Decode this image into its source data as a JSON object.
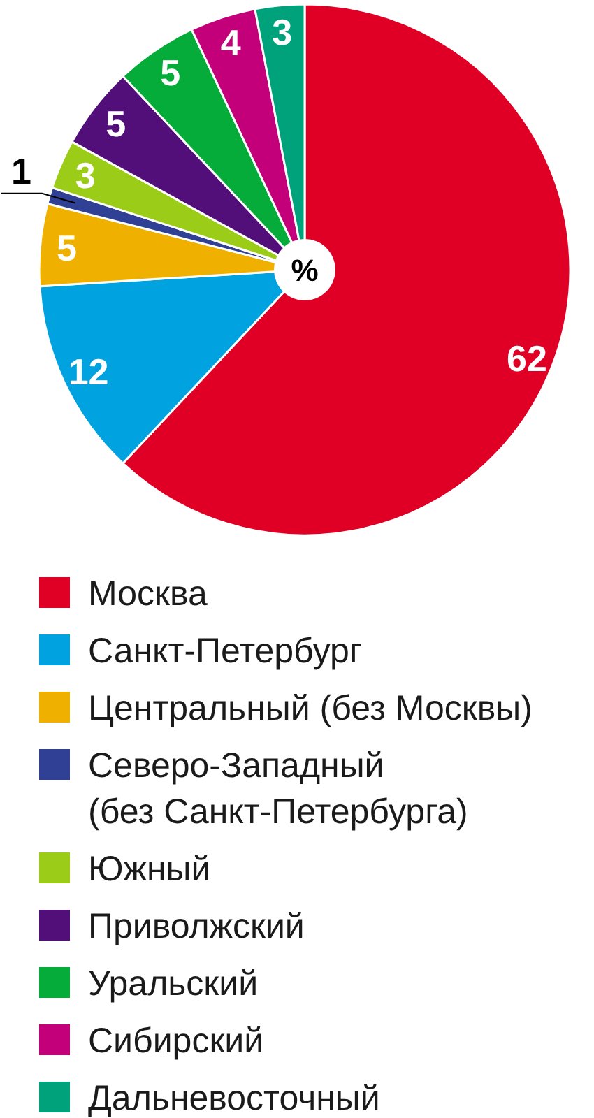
{
  "chart_data": {
    "type": "pie",
    "categories": [
      "Москва",
      "Санкт-Петербург",
      "Центральный (без Москвы)",
      "Северо-Западный (без Санкт-Петербурга)",
      "Южный",
      "Приволжский",
      "Уральский",
      "Сибирский",
      "Дальневосточный"
    ],
    "values": [
      62,
      12,
      5,
      1,
      3,
      5,
      5,
      4,
      3
    ],
    "colors": [
      "#e00025",
      "#00a3e0",
      "#f0b000",
      "#2f4095",
      "#9bcd18",
      "#520f7a",
      "#06ac3a",
      "#c3007a",
      "#00a27b"
    ],
    "data_labels": true,
    "legend": "bottom",
    "annotations": [
      "%"
    ]
  }
}
